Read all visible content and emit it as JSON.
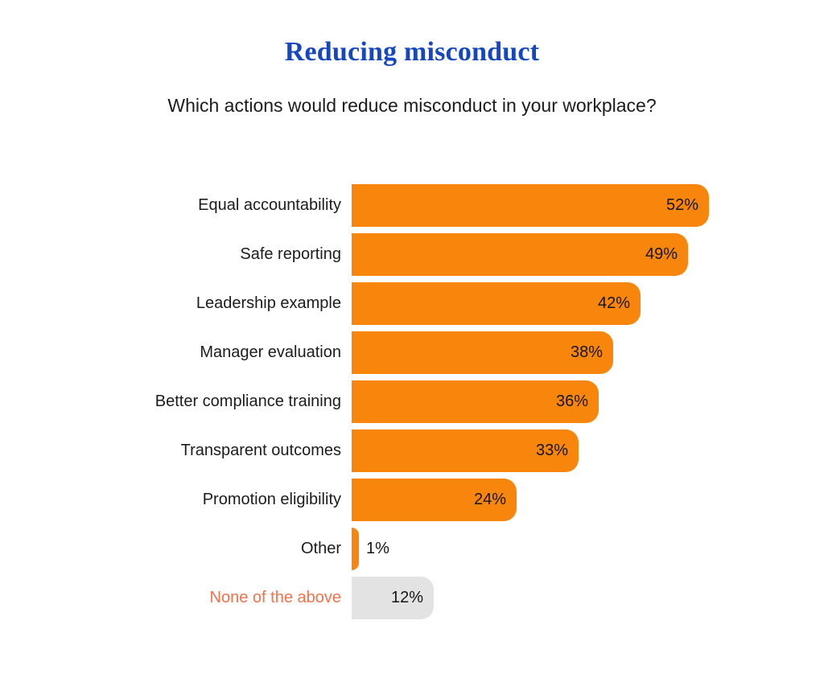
{
  "header": {
    "title": "Reducing misconduct",
    "subtitle": "Which actions would reduce misconduct in your workplace?",
    "title_color": "#1747C0",
    "subtitle_color": "#1c1c1e"
  },
  "chart_data": {
    "type": "bar",
    "orientation": "horizontal",
    "title": "Reducing misconduct",
    "subtitle": "Which actions would reduce misconduct in your workplace?",
    "xlabel": "",
    "ylabel": "",
    "unit": "%",
    "xlim": [
      0,
      55
    ],
    "grid": false,
    "legend": false,
    "categories": [
      "Equal accountability",
      "Safe reporting",
      "Leadership example",
      "Manager evaluation",
      "Better compliance training",
      "Transparent outcomes",
      "Promotion eligibility",
      "Other",
      "None of the above"
    ],
    "values": [
      52,
      49,
      42,
      38,
      36,
      33,
      24,
      1,
      12
    ],
    "colors": {
      "bar_orange": "#F8860D",
      "bar_gray": "#E3E3E3",
      "label_dark": "#1c1c1e",
      "label_coral": "#F4714B",
      "value_text": "#161616"
    },
    "bars": [
      {
        "label": "Equal accountability",
        "value": 52,
        "display": "52%",
        "bar_color": "#F8860D",
        "label_color": "#1c1c1e",
        "value_inside": true
      },
      {
        "label": "Safe reporting",
        "value": 49,
        "display": "49%",
        "bar_color": "#F8860D",
        "label_color": "#1c1c1e",
        "value_inside": true
      },
      {
        "label": "Leadership example",
        "value": 42,
        "display": "42%",
        "bar_color": "#F8860D",
        "label_color": "#1c1c1e",
        "value_inside": true
      },
      {
        "label": "Manager evaluation",
        "value": 38,
        "display": "38%",
        "bar_color": "#F8860D",
        "label_color": "#1c1c1e",
        "value_inside": true
      },
      {
        "label": "Better compliance training",
        "value": 36,
        "display": "36%",
        "bar_color": "#F8860D",
        "label_color": "#1c1c1e",
        "value_inside": true
      },
      {
        "label": "Transparent outcomes",
        "value": 33,
        "display": "33%",
        "bar_color": "#F8860D",
        "label_color": "#1c1c1e",
        "value_inside": true
      },
      {
        "label": "Promotion eligibility",
        "value": 24,
        "display": "24%",
        "bar_color": "#F8860D",
        "label_color": "#1c1c1e",
        "value_inside": true
      },
      {
        "label": "Other",
        "value": 1,
        "display": "1%",
        "bar_color": "#F8860D",
        "label_color": "#1c1c1e",
        "value_inside": false
      },
      {
        "label": "None of the above",
        "value": 12,
        "display": "12%",
        "bar_color": "#E3E3E3",
        "label_color": "#F4714B",
        "value_inside": true
      }
    ]
  }
}
